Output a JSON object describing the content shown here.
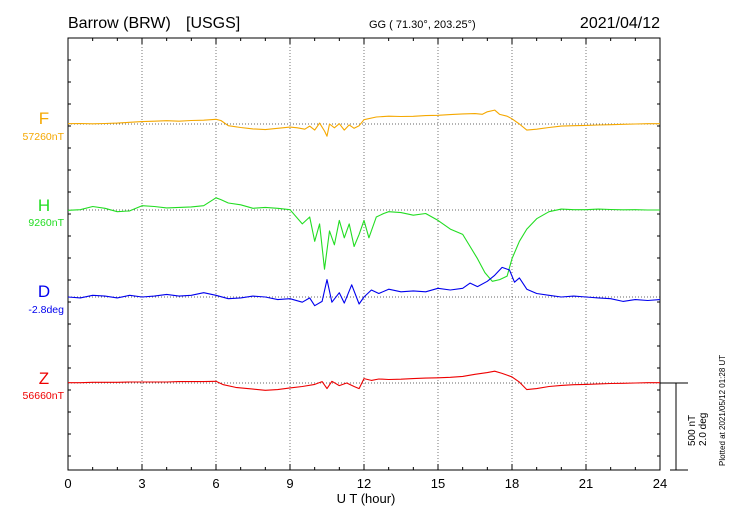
{
  "header": {
    "station": "Barrow (BRW)",
    "agency": "[USGS]",
    "coords": "GG ( 71.30°, 203.25°)",
    "date": "2021/04/12"
  },
  "plotted_at": "Plotted at 2021/05/12 01:28 UT",
  "scale": {
    "nt": "500 nT",
    "deg": "2.0 deg"
  },
  "chart_data": {
    "type": "line",
    "title": "",
    "xlabel": "U T (hour)",
    "ylabel": "",
    "xlim": [
      0,
      24
    ],
    "xticks": [
      0,
      3,
      6,
      9,
      12,
      15,
      18,
      21,
      24
    ],
    "grid": true,
    "series": [
      {
        "name": "F",
        "baseline_label": "57260nT",
        "color": "#f5a800",
        "unit": "nT",
        "baseline": 57260,
        "points": [
          [
            0,
            57262
          ],
          [
            0.5,
            57263
          ],
          [
            1,
            57261
          ],
          [
            1.5,
            57263
          ],
          [
            2,
            57265
          ],
          [
            2.5,
            57270
          ],
          [
            3,
            57274
          ],
          [
            3.5,
            57276
          ],
          [
            4,
            57279
          ],
          [
            4.5,
            57276
          ],
          [
            5,
            57280
          ],
          [
            5.5,
            57282
          ],
          [
            6,
            57287
          ],
          [
            6.2,
            57280
          ],
          [
            6.5,
            57250
          ],
          [
            7,
            57240
          ],
          [
            7.5,
            57232
          ],
          [
            8,
            57228
          ],
          [
            8.5,
            57235
          ],
          [
            9,
            57242
          ],
          [
            9.3,
            57238
          ],
          [
            9.6,
            57230
          ],
          [
            9.8,
            57248
          ],
          [
            10,
            57225
          ],
          [
            10.2,
            57265
          ],
          [
            10.4,
            57220
          ],
          [
            10.5,
            57190
          ],
          [
            10.6,
            57260
          ],
          [
            10.8,
            57238
          ],
          [
            11,
            57262
          ],
          [
            11.2,
            57225
          ],
          [
            11.4,
            57255
          ],
          [
            11.6,
            57235
          ],
          [
            11.8,
            57250
          ],
          [
            12,
            57285
          ],
          [
            12.5,
            57300
          ],
          [
            13,
            57305
          ],
          [
            13.5,
            57303
          ],
          [
            14,
            57304
          ],
          [
            14.5,
            57308
          ],
          [
            15,
            57310
          ],
          [
            15.5,
            57314
          ],
          [
            16,
            57318
          ],
          [
            16.5,
            57320
          ],
          [
            16.8,
            57316
          ],
          [
            17,
            57330
          ],
          [
            17.3,
            57340
          ],
          [
            17.5,
            57315
          ],
          [
            17.8,
            57305
          ],
          [
            18,
            57290
          ],
          [
            18.3,
            57260
          ],
          [
            18.6,
            57225
          ],
          [
            19,
            57230
          ],
          [
            19.5,
            57240
          ],
          [
            20,
            57248
          ],
          [
            20.5,
            57250
          ],
          [
            21,
            57252
          ],
          [
            21.5,
            57254
          ],
          [
            22,
            57256
          ],
          [
            22.5,
            57258
          ],
          [
            23,
            57260
          ],
          [
            23.5,
            57262
          ],
          [
            24,
            57262
          ]
        ]
      },
      {
        "name": "H",
        "baseline_label": "9260nT",
        "color": "#22dd22",
        "unit": "nT",
        "baseline": 9260,
        "points": [
          [
            0,
            9258
          ],
          [
            0.5,
            9262
          ],
          [
            1,
            9280
          ],
          [
            1.5,
            9270
          ],
          [
            2,
            9250
          ],
          [
            2.5,
            9255
          ],
          [
            3,
            9285
          ],
          [
            3.5,
            9280
          ],
          [
            4,
            9272
          ],
          [
            4.5,
            9275
          ],
          [
            5,
            9278
          ],
          [
            5.5,
            9285
          ],
          [
            6,
            9330
          ],
          [
            6.2,
            9320
          ],
          [
            6.5,
            9300
          ],
          [
            7,
            9290
          ],
          [
            7.5,
            9270
          ],
          [
            8,
            9275
          ],
          [
            8.5,
            9270
          ],
          [
            9,
            9262
          ],
          [
            9.5,
            9180
          ],
          [
            9.8,
            9220
          ],
          [
            10,
            9080
          ],
          [
            10.2,
            9180
          ],
          [
            10.4,
            8920
          ],
          [
            10.6,
            9140
          ],
          [
            10.8,
            9060
          ],
          [
            11,
            9200
          ],
          [
            11.2,
            9100
          ],
          [
            11.4,
            9180
          ],
          [
            11.6,
            9050
          ],
          [
            11.8,
            9120
          ],
          [
            12,
            9200
          ],
          [
            12.2,
            9100
          ],
          [
            12.5,
            9220
          ],
          [
            12.8,
            9240
          ],
          [
            13,
            9250
          ],
          [
            13.5,
            9245
          ],
          [
            14,
            9230
          ],
          [
            14.5,
            9240
          ],
          [
            15,
            9200
          ],
          [
            15.5,
            9150
          ],
          [
            16,
            9120
          ],
          [
            16.3,
            9050
          ],
          [
            16.6,
            8980
          ],
          [
            16.9,
            8900
          ],
          [
            17.2,
            8850
          ],
          [
            17.5,
            8860
          ],
          [
            17.8,
            8880
          ],
          [
            18,
            8980
          ],
          [
            18.3,
            9080
          ],
          [
            18.6,
            9150
          ],
          [
            19,
            9210
          ],
          [
            19.5,
            9250
          ],
          [
            20,
            9265
          ],
          [
            20.5,
            9262
          ],
          [
            21,
            9262
          ],
          [
            21.5,
            9265
          ],
          [
            22,
            9263
          ],
          [
            22.5,
            9261
          ],
          [
            23,
            9262
          ],
          [
            23.5,
            9260
          ],
          [
            24,
            9260
          ]
        ]
      },
      {
        "name": "D",
        "baseline_label": "-2.8deg",
        "color": "#0000ee",
        "unit": "deg",
        "baseline": -2.8,
        "points": [
          [
            0,
            -2.8
          ],
          [
            0.5,
            -2.82
          ],
          [
            1,
            -2.76
          ],
          [
            1.5,
            -2.78
          ],
          [
            2,
            -2.82
          ],
          [
            2.5,
            -2.76
          ],
          [
            3,
            -2.8
          ],
          [
            3.5,
            -2.78
          ],
          [
            4,
            -2.74
          ],
          [
            4.5,
            -2.78
          ],
          [
            5,
            -2.76
          ],
          [
            5.5,
            -2.7
          ],
          [
            6,
            -2.76
          ],
          [
            6.5,
            -2.84
          ],
          [
            7,
            -2.82
          ],
          [
            7.5,
            -2.78
          ],
          [
            8,
            -2.8
          ],
          [
            8.5,
            -2.86
          ],
          [
            9,
            -2.84
          ],
          [
            9.5,
            -2.92
          ],
          [
            9.8,
            -2.82
          ],
          [
            10,
            -3.0
          ],
          [
            10.3,
            -2.9
          ],
          [
            10.5,
            -2.4
          ],
          [
            10.7,
            -2.92
          ],
          [
            11,
            -2.7
          ],
          [
            11.2,
            -2.94
          ],
          [
            11.5,
            -2.52
          ],
          [
            11.8,
            -2.96
          ],
          [
            12,
            -2.8
          ],
          [
            12.3,
            -2.64
          ],
          [
            12.6,
            -2.72
          ],
          [
            13,
            -2.62
          ],
          [
            13.5,
            -2.68
          ],
          [
            14,
            -2.66
          ],
          [
            14.5,
            -2.68
          ],
          [
            15,
            -2.6
          ],
          [
            15.5,
            -2.64
          ],
          [
            16,
            -2.6
          ],
          [
            16.3,
            -2.48
          ],
          [
            16.6,
            -2.56
          ],
          [
            17,
            -2.44
          ],
          [
            17.3,
            -2.3
          ],
          [
            17.6,
            -2.12
          ],
          [
            17.9,
            -2.18
          ],
          [
            18.1,
            -2.46
          ],
          [
            18.3,
            -2.36
          ],
          [
            18.6,
            -2.62
          ],
          [
            19,
            -2.72
          ],
          [
            19.5,
            -2.76
          ],
          [
            20,
            -2.8
          ],
          [
            20.5,
            -2.78
          ],
          [
            21,
            -2.8
          ],
          [
            21.5,
            -2.82
          ],
          [
            22,
            -2.84
          ],
          [
            22.5,
            -2.9
          ],
          [
            23,
            -2.86
          ],
          [
            23.5,
            -2.88
          ],
          [
            24,
            -2.86
          ]
        ]
      },
      {
        "name": "Z",
        "baseline_label": "56660nT",
        "color": "#ee0000",
        "unit": "nT",
        "baseline": 56660,
        "points": [
          [
            0,
            56662
          ],
          [
            0.5,
            56662
          ],
          [
            1,
            56664
          ],
          [
            1.5,
            56664
          ],
          [
            2,
            56664
          ],
          [
            2.5,
            56666
          ],
          [
            3,
            56666
          ],
          [
            3.5,
            56666
          ],
          [
            4,
            56666
          ],
          [
            4.5,
            56668
          ],
          [
            5,
            56668
          ],
          [
            5.5,
            56668
          ],
          [
            6,
            56670
          ],
          [
            6.3,
            56650
          ],
          [
            6.8,
            56635
          ],
          [
            7.5,
            56625
          ],
          [
            8,
            56618
          ],
          [
            8.5,
            56622
          ],
          [
            9,
            56632
          ],
          [
            9.5,
            56640
          ],
          [
            10,
            56652
          ],
          [
            10.3,
            56668
          ],
          [
            10.5,
            56628
          ],
          [
            10.7,
            56670
          ],
          [
            11,
            56645
          ],
          [
            11.3,
            56660
          ],
          [
            11.6,
            56640
          ],
          [
            11.8,
            56628
          ],
          [
            12,
            56685
          ],
          [
            12.3,
            56675
          ],
          [
            12.6,
            56683
          ],
          [
            13,
            56680
          ],
          [
            13.5,
            56682
          ],
          [
            14,
            56685
          ],
          [
            14.5,
            56688
          ],
          [
            15,
            56690
          ],
          [
            15.5,
            56693
          ],
          [
            16,
            56698
          ],
          [
            16.5,
            56710
          ],
          [
            17,
            56720
          ],
          [
            17.3,
            56728
          ],
          [
            17.6,
            56715
          ],
          [
            18,
            56695
          ],
          [
            18.3,
            56665
          ],
          [
            18.6,
            56622
          ],
          [
            19,
            56628
          ],
          [
            19.5,
            56640
          ],
          [
            20,
            56646
          ],
          [
            20.5,
            56650
          ],
          [
            21,
            56652
          ],
          [
            21.5,
            56655
          ],
          [
            22,
            56657
          ],
          [
            22.5,
            56658
          ],
          [
            23,
            56660
          ],
          [
            23.5,
            56662
          ],
          [
            24,
            56662
          ]
        ]
      }
    ]
  }
}
